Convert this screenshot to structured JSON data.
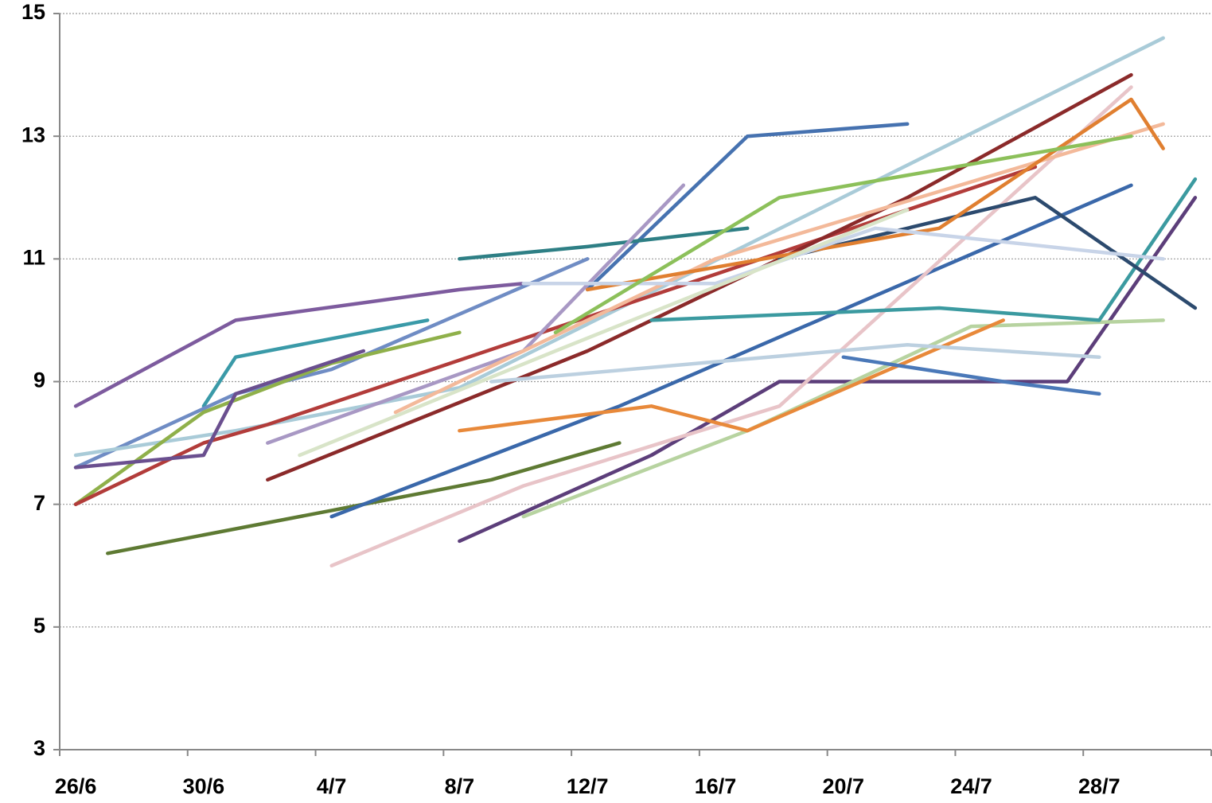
{
  "chart_data": {
    "type": "line",
    "categories": [
      "26/6",
      null,
      null,
      null,
      "30/6",
      null,
      null,
      null,
      "4/7",
      null,
      null,
      null,
      "8/7",
      null,
      null,
      null,
      "12/7",
      null,
      null,
      null,
      "16/7",
      null,
      null,
      null,
      "20/7",
      null,
      null,
      null,
      "24/7",
      null,
      null,
      null,
      "28/7",
      null,
      null,
      null
    ],
    "ylim": [
      3,
      15
    ],
    "yticks": [
      3,
      5,
      7,
      9,
      11,
      13,
      15
    ],
    "grid": true,
    "span_gaps": true,
    "series": [
      {
        "color": "#7d5b9e",
        "values": [
          8.6,
          null,
          null,
          null,
          null,
          10.0,
          null,
          null,
          null,
          null,
          null,
          null,
          10.5,
          null,
          10.6,
          null,
          null,
          null,
          null,
          null,
          null,
          null,
          null,
          null,
          null,
          null,
          null,
          null,
          null,
          null,
          null,
          null,
          null,
          null,
          null,
          null
        ]
      },
      {
        "color": "#3a9aa8",
        "values": [
          null,
          null,
          null,
          null,
          8.6,
          9.4,
          null,
          null,
          null,
          null,
          null,
          10.0,
          null,
          null,
          null,
          null,
          null,
          null,
          null,
          null,
          null,
          null,
          null,
          null,
          null,
          null,
          null,
          null,
          null,
          null,
          null,
          null,
          null,
          null,
          null,
          null
        ]
      },
      {
        "color": "#6f8cc4",
        "values": [
          7.6,
          null,
          null,
          null,
          null,
          8.8,
          null,
          null,
          9.2,
          null,
          null,
          null,
          null,
          null,
          null,
          null,
          11.0,
          null,
          null,
          null,
          null,
          null,
          null,
          null,
          null,
          null,
          null,
          null,
          null,
          null,
          null,
          null,
          null,
          null,
          null,
          null
        ]
      },
      {
        "color": "#a9cbd8",
        "values": [
          7.8,
          null,
          null,
          null,
          null,
          8.2,
          null,
          null,
          null,
          null,
          null,
          null,
          8.9,
          null,
          null,
          null,
          null,
          null,
          null,
          null,
          null,
          null,
          null,
          null,
          null,
          null,
          null,
          null,
          null,
          null,
          null,
          null,
          null,
          null,
          14.6,
          null
        ]
      },
      {
        "color": "#8fb04a",
        "values": [
          7.0,
          null,
          null,
          null,
          8.5,
          null,
          null,
          null,
          9.3,
          null,
          null,
          null,
          9.8,
          null,
          null,
          null,
          null,
          null,
          null,
          null,
          null,
          null,
          null,
          null,
          null,
          null,
          null,
          null,
          null,
          null,
          null,
          null,
          null,
          null,
          null,
          null
        ]
      },
      {
        "color": "#b23c3a",
        "values": [
          7.0,
          null,
          null,
          null,
          8.0,
          null,
          8.3,
          null,
          null,
          null,
          null,
          null,
          null,
          null,
          null,
          null,
          null,
          null,
          null,
          null,
          null,
          null,
          null,
          null,
          null,
          null,
          null,
          null,
          null,
          null,
          12.5,
          null,
          null,
          null,
          null,
          null
        ]
      },
      {
        "color": "#6a4f8f",
        "values": [
          7.6,
          null,
          null,
          null,
          7.8,
          8.8,
          null,
          null,
          null,
          9.5,
          null,
          null,
          null,
          null,
          null,
          null,
          null,
          null,
          null,
          null,
          null,
          null,
          null,
          null,
          null,
          null,
          null,
          null,
          null,
          null,
          null,
          null,
          null,
          null,
          null,
          null
        ]
      },
      {
        "color": "#5e7a33",
        "values": [
          null,
          6.2,
          null,
          null,
          null,
          null,
          null,
          null,
          6.9,
          null,
          null,
          null,
          null,
          7.4,
          null,
          null,
          null,
          8.0,
          null,
          null,
          null,
          null,
          null,
          null,
          null,
          null,
          null,
          null,
          null,
          null,
          null,
          null,
          null,
          null,
          null,
          null
        ]
      },
      {
        "color": "#3a68aa",
        "values": [
          null,
          null,
          null,
          null,
          null,
          null,
          null,
          null,
          6.8,
          null,
          null,
          null,
          7.6,
          null,
          null,
          null,
          null,
          8.6,
          null,
          null,
          null,
          null,
          null,
          null,
          null,
          null,
          null,
          null,
          null,
          null,
          null,
          null,
          null,
          12.2,
          null,
          null
        ]
      },
      {
        "color": "#5c3e7a",
        "values": [
          null,
          null,
          null,
          null,
          null,
          null,
          null,
          null,
          null,
          null,
          null,
          null,
          6.4,
          null,
          null,
          null,
          null,
          null,
          7.8,
          null,
          null,
          null,
          9.0,
          null,
          null,
          null,
          9.0,
          null,
          null,
          null,
          null,
          9.0,
          null,
          null,
          null,
          12.0
        ]
      },
      {
        "color": "#e8c4c8",
        "values": [
          null,
          null,
          null,
          null,
          null,
          null,
          null,
          null,
          6.0,
          null,
          null,
          null,
          null,
          null,
          7.3,
          null,
          null,
          null,
          null,
          null,
          null,
          null,
          8.6,
          null,
          null,
          null,
          null,
          null,
          null,
          null,
          null,
          null,
          null,
          13.8,
          null,
          null
        ]
      },
      {
        "color": "#b7d3a0",
        "values": [
          null,
          null,
          null,
          null,
          null,
          null,
          null,
          null,
          null,
          null,
          null,
          null,
          null,
          null,
          6.8,
          null,
          null,
          null,
          null,
          null,
          null,
          8.2,
          null,
          null,
          null,
          null,
          null,
          null,
          9.9,
          null,
          null,
          null,
          null,
          null,
          10.0,
          null
        ]
      },
      {
        "color": "#4672b0",
        "values": [
          null,
          null,
          null,
          null,
          null,
          null,
          null,
          null,
          null,
          null,
          null,
          null,
          null,
          null,
          null,
          null,
          10.5,
          null,
          null,
          null,
          null,
          13.0,
          null,
          null,
          null,
          null,
          13.2,
          null,
          null,
          null,
          null,
          null,
          null,
          null,
          null,
          null
        ]
      },
      {
        "color": "#2e7f85",
        "values": [
          null,
          null,
          null,
          null,
          null,
          null,
          null,
          null,
          null,
          null,
          null,
          null,
          11.0,
          null,
          null,
          null,
          11.2,
          null,
          null,
          null,
          null,
          11.5,
          null,
          null,
          null,
          null,
          null,
          null,
          null,
          null,
          null,
          null,
          null,
          null,
          null,
          null
        ]
      },
      {
        "color": "#8b2a2a",
        "values": [
          null,
          null,
          null,
          null,
          null,
          null,
          7.4,
          null,
          null,
          null,
          null,
          null,
          null,
          null,
          null,
          null,
          9.5,
          null,
          null,
          null,
          null,
          null,
          null,
          null,
          null,
          null,
          12.0,
          null,
          null,
          null,
          null,
          null,
          null,
          14.0,
          null,
          null
        ]
      },
      {
        "color": "#e8893a",
        "values": [
          null,
          null,
          null,
          null,
          null,
          null,
          null,
          null,
          null,
          null,
          null,
          null,
          8.2,
          null,
          null,
          null,
          null,
          null,
          8.6,
          null,
          null,
          8.2,
          null,
          null,
          null,
          null,
          null,
          null,
          null,
          10.0,
          null,
          null,
          null,
          null,
          null,
          null
        ]
      },
      {
        "color": "#a898c4",
        "values": [
          null,
          null,
          null,
          null,
          null,
          null,
          8.0,
          null,
          null,
          null,
          null,
          null,
          null,
          null,
          9.5,
          null,
          null,
          null,
          null,
          12.2,
          null,
          null,
          null,
          null,
          null,
          null,
          null,
          null,
          null,
          null,
          null,
          null,
          null,
          null,
          null,
          null
        ]
      },
      {
        "color": "#f3b99a",
        "values": [
          null,
          null,
          null,
          null,
          null,
          null,
          null,
          null,
          null,
          null,
          8.5,
          null,
          null,
          null,
          null,
          null,
          null,
          null,
          null,
          null,
          11.0,
          null,
          null,
          null,
          null,
          null,
          null,
          null,
          null,
          null,
          null,
          null,
          null,
          null,
          13.2,
          null
        ]
      },
      {
        "color": "#3b9aa0",
        "values": [
          null,
          null,
          null,
          null,
          null,
          null,
          null,
          null,
          null,
          null,
          null,
          null,
          null,
          null,
          null,
          null,
          null,
          null,
          10.0,
          null,
          null,
          null,
          null,
          null,
          null,
          null,
          null,
          10.2,
          null,
          null,
          null,
          null,
          10.0,
          null,
          null,
          12.3
        ]
      },
      {
        "color": "#2c4a6e",
        "values": [
          null,
          null,
          null,
          null,
          null,
          null,
          null,
          null,
          null,
          null,
          null,
          null,
          null,
          null,
          null,
          null,
          null,
          null,
          null,
          null,
          null,
          null,
          11.0,
          null,
          null,
          null,
          null,
          null,
          null,
          null,
          12.0,
          null,
          null,
          null,
          null,
          10.2
        ]
      },
      {
        "color": "#bcd0e0",
        "values": [
          null,
          null,
          null,
          null,
          null,
          null,
          null,
          null,
          null,
          null,
          null,
          null,
          null,
          9.0,
          null,
          null,
          null,
          null,
          null,
          null,
          null,
          null,
          null,
          null,
          null,
          null,
          9.6,
          null,
          null,
          null,
          null,
          null,
          9.4,
          null,
          null,
          null
        ]
      },
      {
        "color": "#e07f30",
        "values": [
          null,
          null,
          null,
          null,
          null,
          null,
          null,
          null,
          null,
          null,
          null,
          null,
          null,
          null,
          null,
          null,
          10.5,
          null,
          null,
          null,
          null,
          null,
          null,
          null,
          null,
          null,
          null,
          11.5,
          null,
          null,
          null,
          null,
          null,
          13.6,
          12.8,
          null
        ]
      },
      {
        "color": "#4a78b8",
        "values": [
          null,
          null,
          null,
          null,
          null,
          null,
          null,
          null,
          null,
          null,
          null,
          null,
          null,
          null,
          null,
          null,
          null,
          null,
          null,
          null,
          null,
          null,
          null,
          null,
          9.4,
          null,
          null,
          null,
          null,
          9.0,
          null,
          null,
          8.8,
          null,
          null,
          null
        ]
      },
      {
        "color": "#c8d4e8",
        "values": [
          null,
          null,
          null,
          null,
          null,
          null,
          null,
          null,
          null,
          null,
          null,
          null,
          null,
          null,
          10.6,
          null,
          null,
          null,
          null,
          null,
          10.6,
          null,
          null,
          null,
          null,
          11.5,
          null,
          null,
          null,
          null,
          null,
          null,
          null,
          null,
          11.0,
          null
        ]
      },
      {
        "color": "#8cc05a",
        "values": [
          null,
          null,
          null,
          null,
          null,
          null,
          null,
          null,
          null,
          null,
          null,
          null,
          null,
          null,
          null,
          9.8,
          null,
          null,
          null,
          null,
          null,
          null,
          12.0,
          null,
          null,
          null,
          null,
          null,
          null,
          null,
          null,
          null,
          null,
          13.0,
          null,
          null
        ]
      },
      {
        "color": "#d8e4c8",
        "values": [
          null,
          null,
          null,
          null,
          null,
          null,
          null,
          7.8,
          null,
          null,
          null,
          null,
          null,
          null,
          null,
          9.5,
          null,
          null,
          null,
          null,
          null,
          null,
          null,
          null,
          null,
          null,
          11.8,
          null,
          null,
          null,
          null,
          null,
          null,
          null,
          null,
          null
        ]
      }
    ]
  }
}
